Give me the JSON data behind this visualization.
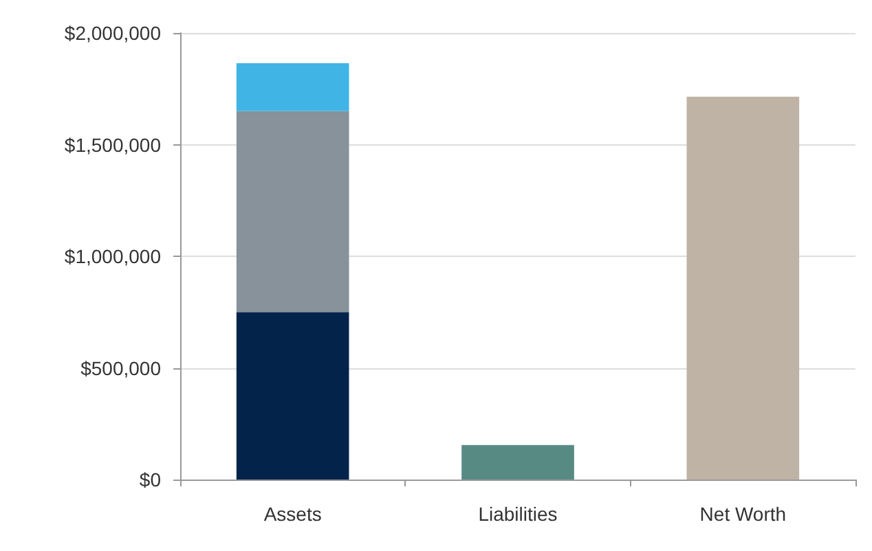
{
  "chart_data": {
    "type": "bar",
    "stacked": true,
    "categories": [
      "Assets",
      "Liabilities",
      "Net Worth"
    ],
    "series": [
      {
        "color": "#03234b",
        "values": [
          750000,
          null,
          null
        ]
      },
      {
        "color": "#87929a",
        "values": [
          900000,
          null,
          null
        ]
      },
      {
        "color": "#40b4e5",
        "values": [
          215000,
          null,
          null
        ]
      },
      {
        "color": "#588a84",
        "values": [
          null,
          155000,
          null
        ]
      },
      {
        "color": "#bfb3a5",
        "values": [
          null,
          null,
          1715000
        ]
      }
    ],
    "ylim": [
      0,
      2000000
    ],
    "yticks": [
      {
        "value": 0,
        "label": "$0"
      },
      {
        "value": 500000,
        "label": "$500,000"
      },
      {
        "value": 1000000,
        "label": "$1,000,000"
      },
      {
        "value": 1500000,
        "label": "$1,500,000"
      },
      {
        "value": 2000000,
        "label": "$2,000,000"
      }
    ],
    "grid": "y"
  }
}
